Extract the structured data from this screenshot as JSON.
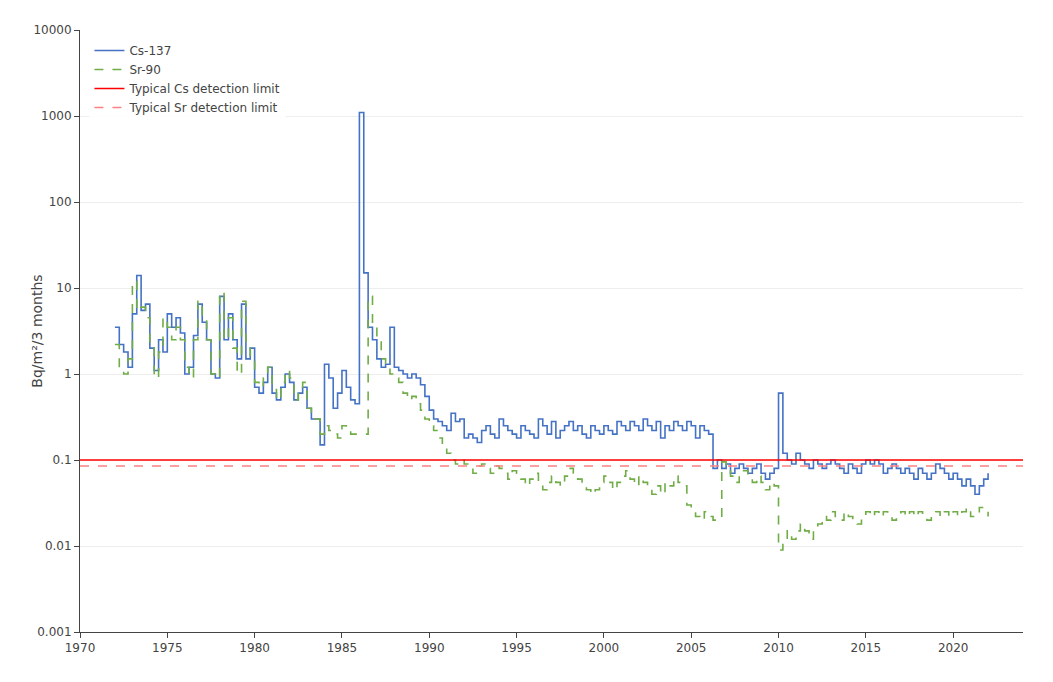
{
  "chart_data": {
    "type": "step",
    "ylabel": "Bq/m²/3 months",
    "log": "y",
    "grid": "y",
    "legend": "upper left",
    "xlim": [
      1970,
      2024
    ],
    "xticks": [
      1970,
      1975,
      1980,
      1985,
      1990,
      1995,
      2000,
      2005,
      2010,
      2015,
      2020
    ],
    "ylim": [
      0.001,
      10000
    ],
    "yticks": [
      0.001,
      0.01,
      0.1,
      1,
      10,
      100,
      1000,
      10000
    ],
    "series": [
      {
        "name": "Cs-137",
        "type": "step",
        "color": "#4472c4",
        "line_style": "solid",
        "x": [
          1972.0,
          1972.25,
          1972.5,
          1972.75,
          1973.0,
          1973.25,
          1973.5,
          1973.75,
          1974.0,
          1974.25,
          1974.5,
          1974.75,
          1975.0,
          1975.25,
          1975.5,
          1975.75,
          1976.0,
          1976.25,
          1976.5,
          1976.75,
          1977.0,
          1977.25,
          1977.5,
          1977.75,
          1978.0,
          1978.25,
          1978.5,
          1978.75,
          1979.0,
          1979.25,
          1979.5,
          1979.75,
          1980.0,
          1980.25,
          1980.5,
          1980.75,
          1981.0,
          1981.25,
          1981.5,
          1981.75,
          1982.0,
          1982.25,
          1982.5,
          1982.75,
          1983.0,
          1983.25,
          1983.5,
          1983.75,
          1984.0,
          1984.25,
          1984.5,
          1984.75,
          1985.0,
          1985.25,
          1985.5,
          1985.75,
          1986.0,
          1986.25,
          1986.5,
          1986.75,
          1987.0,
          1987.25,
          1987.5,
          1987.75,
          1988.0,
          1988.25,
          1988.5,
          1988.75,
          1989.0,
          1989.25,
          1989.5,
          1989.75,
          1990.0,
          1990.25,
          1990.5,
          1990.75,
          1991.0,
          1991.25,
          1991.5,
          1991.75,
          1992.0,
          1992.25,
          1992.5,
          1992.75,
          1993.0,
          1993.25,
          1993.5,
          1993.75,
          1994.0,
          1994.25,
          1994.5,
          1994.75,
          1995.0,
          1995.25,
          1995.5,
          1995.75,
          1996.0,
          1996.25,
          1996.5,
          1996.75,
          1997.0,
          1997.25,
          1997.5,
          1997.75,
          1998.0,
          1998.25,
          1998.5,
          1998.75,
          1999.0,
          1999.25,
          1999.5,
          1999.75,
          2000.0,
          2000.25,
          2000.5,
          2000.75,
          2001.0,
          2001.25,
          2001.5,
          2001.75,
          2002.0,
          2002.25,
          2002.5,
          2002.75,
          2003.0,
          2003.25,
          2003.5,
          2003.75,
          2004.0,
          2004.25,
          2004.5,
          2004.75,
          2005.0,
          2005.25,
          2005.5,
          2005.75,
          2006.0,
          2006.25,
          2006.5,
          2006.75,
          2007.0,
          2007.25,
          2007.5,
          2007.75,
          2008.0,
          2008.25,
          2008.5,
          2008.75,
          2009.0,
          2009.25,
          2009.5,
          2009.75,
          2010.0,
          2010.25,
          2010.5,
          2010.75,
          2011.0,
          2011.25,
          2011.5,
          2011.75,
          2012.0,
          2012.25,
          2012.5,
          2012.75,
          2013.0,
          2013.25,
          2013.5,
          2013.75,
          2014.0,
          2014.25,
          2014.5,
          2014.75,
          2015.0,
          2015.25,
          2015.5,
          2015.75,
          2016.0,
          2016.25,
          2016.5,
          2016.75,
          2017.0,
          2017.25,
          2017.5,
          2017.75,
          2018.0,
          2018.25,
          2018.5,
          2018.75,
          2019.0,
          2019.25,
          2019.5,
          2019.75,
          2020.0,
          2020.25,
          2020.5,
          2020.75,
          2021.0,
          2021.25,
          2021.5,
          2021.75,
          2022.0
        ],
        "values": [
          3.5,
          2.2,
          1.8,
          1.2,
          5.0,
          14.0,
          5.5,
          6.5,
          2.0,
          1.1,
          2.5,
          1.8,
          5.0,
          3.5,
          4.5,
          3.0,
          1.0,
          1.2,
          2.8,
          6.5,
          4.0,
          2.5,
          1.0,
          0.9,
          8.0,
          2.5,
          5.0,
          2.5,
          1.5,
          6.5,
          1.5,
          2.0,
          0.7,
          0.6,
          0.8,
          1.2,
          0.6,
          0.5,
          0.7,
          1.0,
          0.8,
          0.5,
          0.6,
          0.7,
          0.4,
          0.3,
          0.3,
          0.15,
          1.3,
          0.9,
          0.4,
          0.6,
          1.1,
          0.7,
          0.5,
          0.45,
          1100.0,
          15.0,
          3.5,
          2.5,
          1.5,
          1.2,
          1.3,
          3.5,
          1.2,
          1.1,
          1.0,
          0.9,
          1.0,
          0.9,
          0.75,
          0.55,
          0.38,
          0.3,
          0.28,
          0.25,
          0.22,
          0.35,
          0.28,
          0.3,
          0.18,
          0.2,
          0.18,
          0.16,
          0.22,
          0.25,
          0.2,
          0.18,
          0.3,
          0.25,
          0.22,
          0.2,
          0.18,
          0.25,
          0.22,
          0.2,
          0.18,
          0.3,
          0.25,
          0.2,
          0.28,
          0.18,
          0.22,
          0.25,
          0.28,
          0.22,
          0.25,
          0.2,
          0.18,
          0.25,
          0.22,
          0.2,
          0.25,
          0.22,
          0.2,
          0.28,
          0.25,
          0.22,
          0.28,
          0.25,
          0.22,
          0.3,
          0.25,
          0.22,
          0.28,
          0.18,
          0.25,
          0.22,
          0.28,
          0.25,
          0.22,
          0.28,
          0.25,
          0.18,
          0.25,
          0.22,
          0.2,
          0.08,
          0.1,
          0.08,
          0.09,
          0.07,
          0.08,
          0.09,
          0.08,
          0.07,
          0.08,
          0.09,
          0.07,
          0.06,
          0.07,
          0.08,
          0.6,
          0.12,
          0.1,
          0.09,
          0.12,
          0.1,
          0.09,
          0.08,
          0.1,
          0.09,
          0.08,
          0.09,
          0.1,
          0.09,
          0.08,
          0.07,
          0.09,
          0.08,
          0.07,
          0.09,
          0.1,
          0.09,
          0.1,
          0.09,
          0.07,
          0.08,
          0.09,
          0.08,
          0.07,
          0.08,
          0.07,
          0.06,
          0.08,
          0.07,
          0.06,
          0.07,
          0.09,
          0.08,
          0.07,
          0.06,
          0.07,
          0.06,
          0.05,
          0.06,
          0.05,
          0.04,
          0.05,
          0.06,
          0.07
        ]
      },
      {
        "name": "Sr-90",
        "type": "step",
        "color": "#70ad47",
        "line_style": "dashed",
        "x": [
          1972.0,
          1972.25,
          1972.5,
          1972.75,
          1973.0,
          1973.25,
          1973.5,
          1973.75,
          1974.0,
          1974.25,
          1974.5,
          1974.75,
          1975.0,
          1975.25,
          1975.5,
          1975.75,
          1976.0,
          1976.25,
          1976.5,
          1976.75,
          1977.0,
          1977.25,
          1977.5,
          1977.75,
          1978.0,
          1978.25,
          1978.5,
          1978.75,
          1979.0,
          1979.25,
          1979.5,
          1979.75,
          1980.0,
          1980.25,
          1980.5,
          1980.75,
          1981.0,
          1981.25,
          1981.5,
          1981.75,
          1982.0,
          1982.25,
          1982.5,
          1982.75,
          1983.0,
          1983.25,
          1983.5,
          1983.75,
          1984.0,
          1984.25,
          1984.5,
          1984.75,
          1985.0,
          1985.25,
          1985.5,
          1986.5,
          1986.75,
          1987.0,
          1987.25,
          1987.5,
          1987.75,
          1988.0,
          1988.25,
          1988.5,
          1988.75,
          1989.0,
          1989.25,
          1989.5,
          1989.75,
          1990.0,
          1990.25,
          1990.5,
          1990.75,
          1991.0,
          1991.25,
          1991.5,
          1991.75,
          1992.0,
          1992.25,
          1992.5,
          1992.75,
          1993.0,
          1993.25,
          1993.5,
          1993.75,
          1994.0,
          1994.25,
          1994.5,
          1994.75,
          1995.0,
          1995.25,
          1995.5,
          1995.75,
          1996.0,
          1996.25,
          1996.5,
          1996.75,
          1997.0,
          1997.25,
          1997.5,
          1997.75,
          1998.0,
          1998.25,
          1998.5,
          1998.75,
          1999.0,
          1999.25,
          1999.5,
          1999.75,
          2000.0,
          2000.25,
          2000.5,
          2000.75,
          2001.0,
          2001.25,
          2001.5,
          2001.75,
          2002.0,
          2002.25,
          2002.5,
          2002.75,
          2003.0,
          2003.25,
          2003.5,
          2003.75,
          2004.0,
          2004.25,
          2004.5,
          2004.75,
          2005.0,
          2005.25,
          2005.5,
          2005.75,
          2006.0,
          2006.25,
          2006.75,
          2007.0,
          2007.25,
          2007.5,
          2007.75,
          2008.0,
          2008.25,
          2008.5,
          2008.75,
          2009.0,
          2009.25,
          2009.5,
          2009.75,
          2010.0,
          2010.25,
          2010.5,
          2010.75,
          2011.0,
          2011.25,
          2011.5,
          2011.75,
          2012.0,
          2012.25,
          2012.5,
          2012.75,
          2013.0,
          2013.25,
          2013.5,
          2013.75,
          2014.0,
          2014.25,
          2014.5,
          2014.75,
          2015.0,
          2015.25,
          2015.5,
          2015.75,
          2016.0,
          2016.25,
          2016.5,
          2016.75,
          2017.0,
          2017.25,
          2017.5,
          2017.75,
          2018.0,
          2018.25,
          2018.5,
          2018.75,
          2019.0,
          2019.25,
          2019.5,
          2019.75,
          2020.0,
          2020.25,
          2020.5,
          2020.75,
          2021.0,
          2021.25,
          2021.5,
          2022.0
        ],
        "values": [
          2.2,
          1.2,
          1.0,
          1.5,
          12.0,
          5.5,
          6.0,
          4.5,
          2.0,
          0.9,
          1.8,
          4.5,
          3.5,
          2.5,
          3.5,
          2.5,
          1.2,
          0.9,
          2.5,
          7.0,
          4.5,
          2.5,
          1.0,
          0.9,
          9.0,
          2.5,
          4.5,
          2.0,
          1.0,
          7.0,
          2.0,
          1.5,
          0.8,
          0.7,
          0.9,
          1.2,
          0.7,
          0.5,
          0.8,
          1.1,
          0.9,
          0.5,
          0.7,
          0.8,
          0.4,
          0.3,
          0.3,
          0.2,
          0.25,
          0.22,
          0.2,
          0.18,
          0.25,
          0.22,
          0.2,
          8.0,
          3.5,
          2.5,
          1.5,
          1.2,
          1.0,
          0.9,
          0.8,
          0.6,
          0.5,
          0.55,
          0.45,
          0.38,
          0.3,
          0.25,
          0.22,
          0.18,
          0.15,
          0.12,
          0.1,
          0.09,
          0.1,
          0.09,
          0.08,
          0.07,
          0.085,
          0.09,
          0.08,
          0.07,
          0.085,
          0.08,
          0.07,
          0.06,
          0.075,
          0.07,
          0.06,
          0.05,
          0.06,
          0.07,
          0.055,
          0.045,
          0.055,
          0.065,
          0.055,
          0.05,
          0.065,
          0.08,
          0.07,
          0.06,
          0.05,
          0.045,
          0.04,
          0.045,
          0.055,
          0.065,
          0.055,
          0.045,
          0.055,
          0.065,
          0.075,
          0.06,
          0.05,
          0.065,
          0.055,
          0.045,
          0.04,
          0.05,
          0.04,
          0.055,
          0.05,
          0.065,
          0.055,
          0.05,
          0.03,
          0.025,
          0.022,
          0.02,
          0.025,
          0.022,
          0.02,
          0.095,
          0.075,
          0.065,
          0.055,
          0.065,
          0.075,
          0.065,
          0.055,
          0.065,
          0.055,
          0.045,
          0.055,
          0.05,
          0.009,
          0.012,
          0.015,
          0.012,
          0.015,
          0.018,
          0.015,
          0.012,
          0.015,
          0.018,
          0.022,
          0.02,
          0.025,
          0.022,
          0.02,
          0.025,
          0.022,
          0.02,
          0.018,
          0.022,
          0.025,
          0.022,
          0.025,
          0.022,
          0.025,
          0.022,
          0.02,
          0.022,
          0.025,
          0.022,
          0.025,
          0.022,
          0.025,
          0.022,
          0.02,
          0.022,
          0.025,
          0.022,
          0.025,
          0.022,
          0.025,
          0.022,
          0.025,
          0.028,
          0.022,
          0.025,
          0.028,
          0.022
        ]
      },
      {
        "name": "Typical Cs detection limit",
        "type": "hline",
        "color": "#ff0000",
        "line_style": "solid",
        "values": [
          0.1
        ]
      },
      {
        "name": "Typical Sr detection limit",
        "type": "hline",
        "color": "#ff8080",
        "line_style": "dashed",
        "values": [
          0.085
        ]
      }
    ]
  }
}
